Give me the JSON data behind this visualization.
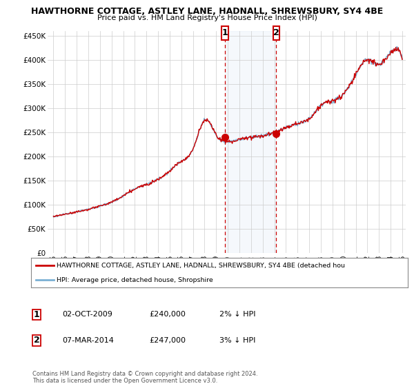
{
  "title_line1": "HAWTHORNE COTTAGE, ASTLEY LANE, HADNALL, SHREWSBURY, SY4 4BE",
  "title_line2": "Price paid vs. HM Land Registry's House Price Index (HPI)",
  "legend_line1": "HAWTHORNE COTTAGE, ASTLEY LANE, HADNALL, SHREWSBURY, SY4 4BE (detached hou",
  "legend_line2": "HPI: Average price, detached house, Shropshire",
  "annotation1_label": "1",
  "annotation1_date": "02-OCT-2009",
  "annotation1_price": "£240,000",
  "annotation1_hpi": "2% ↓ HPI",
  "annotation2_label": "2",
  "annotation2_date": "07-MAR-2014",
  "annotation2_price": "£247,000",
  "annotation2_hpi": "3% ↓ HPI",
  "footer": "Contains HM Land Registry data © Crown copyright and database right 2024.\nThis data is licensed under the Open Government Licence v3.0.",
  "red_color": "#cc0000",
  "blue_color": "#7ab0d4",
  "annotation_box_color": "#cc0000",
  "shaded_color": "#ddeeff",
  "ylim": [
    0,
    460000
  ],
  "yticks": [
    0,
    50000,
    100000,
    150000,
    200000,
    250000,
    300000,
    350000,
    400000,
    450000
  ],
  "ytick_labels": [
    "£0",
    "£50K",
    "£100K",
    "£150K",
    "£200K",
    "£250K",
    "£300K",
    "£350K",
    "£400K",
    "£450K"
  ],
  "purchase1_year": 2009.75,
  "purchase1_value": 240000,
  "purchase2_year": 2014.17,
  "purchase2_value": 247000,
  "xmin": 1995,
  "xmax": 2025
}
